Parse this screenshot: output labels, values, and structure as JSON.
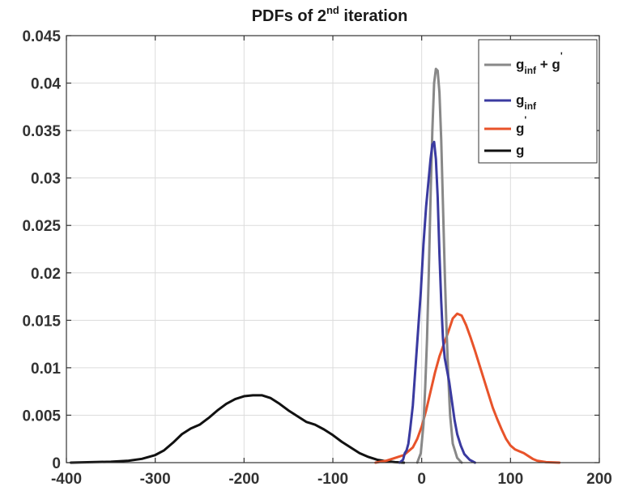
{
  "chart_data": {
    "type": "line",
    "title": {
      "prefix": "PDFs of 2",
      "superscript": "nd",
      "suffix": " iteration"
    },
    "xlabel": "",
    "ylabel": "",
    "xlim": [
      -400,
      200
    ],
    "ylim": [
      0,
      0.045
    ],
    "xticks": [
      -400,
      -300,
      -200,
      -100,
      0,
      100,
      200
    ],
    "xtick_labels": [
      "-400",
      "-300",
      "-200",
      "-100",
      "0",
      "100",
      "200"
    ],
    "yticks": [
      0,
      0.005,
      0.01,
      0.015,
      0.02,
      0.025,
      0.03,
      0.035,
      0.04,
      0.045
    ],
    "ytick_labels": [
      "0",
      "0.005",
      "0.01",
      "0.015",
      "0.02",
      "0.025",
      "0.03",
      "0.035",
      "0.04",
      "0.045"
    ],
    "grid": true,
    "legend_position": "top-right",
    "series": [
      {
        "name": "g_inf + g'",
        "legend": {
          "base": "g",
          "sub": "inf",
          "middle": " + g",
          "sup": "'"
        },
        "color": "#888888",
        "points": [
          [
            -5,
            0
          ],
          [
            -1,
            0.001
          ],
          [
            2,
            0.004
          ],
          [
            4,
            0.008
          ],
          [
            6,
            0.013
          ],
          [
            8,
            0.02
          ],
          [
            10,
            0.028
          ],
          [
            12,
            0.035
          ],
          [
            14,
            0.04
          ],
          [
            16,
            0.0415
          ],
          [
            18,
            0.0413
          ],
          [
            20,
            0.039
          ],
          [
            22,
            0.034
          ],
          [
            24,
            0.027
          ],
          [
            26,
            0.02
          ],
          [
            28,
            0.014
          ],
          [
            30,
            0.009
          ],
          [
            32,
            0.005
          ],
          [
            35,
            0.002
          ],
          [
            40,
            0.0005
          ],
          [
            45,
            0
          ]
        ]
      },
      {
        "name": "g_inf",
        "legend": {
          "base": "g",
          "sub": "inf",
          "middle": "",
          "sup": ""
        },
        "color": "#3a3aa0",
        "points": [
          [
            -25,
            0
          ],
          [
            -21,
            0.0003
          ],
          [
            -19,
            0.001
          ],
          [
            -17,
            0.0013
          ],
          [
            -15,
            0.002
          ],
          [
            -13,
            0.0035
          ],
          [
            -10,
            0.006
          ],
          [
            -7,
            0.01
          ],
          [
            -4,
            0.014
          ],
          [
            -1,
            0.018
          ],
          [
            2,
            0.023
          ],
          [
            5,
            0.027
          ],
          [
            8,
            0.03
          ],
          [
            10,
            0.032
          ],
          [
            12,
            0.0335
          ],
          [
            14,
            0.0338
          ],
          [
            16,
            0.032
          ],
          [
            18,
            0.028
          ],
          [
            20,
            0.022
          ],
          [
            22,
            0.017
          ],
          [
            24,
            0.013
          ],
          [
            26,
            0.011
          ],
          [
            28,
            0.01
          ],
          [
            31,
            0.0085
          ],
          [
            34,
            0.0065
          ],
          [
            37,
            0.0045
          ],
          [
            40,
            0.003
          ],
          [
            44,
            0.0018
          ],
          [
            48,
            0.0009
          ],
          [
            54,
            0.0003
          ],
          [
            60,
            0
          ]
        ]
      },
      {
        "name": "g'",
        "legend": {
          "base": "g",
          "sub": "",
          "middle": "",
          "sup": "'"
        },
        "color": "#e8532a",
        "points": [
          [
            -52,
            0
          ],
          [
            -40,
            0.0002
          ],
          [
            -30,
            0.0005
          ],
          [
            -20,
            0.0008
          ],
          [
            -10,
            0.0016
          ],
          [
            -5,
            0.0025
          ],
          [
            0,
            0.0038
          ],
          [
            5,
            0.0055
          ],
          [
            10,
            0.0075
          ],
          [
            15,
            0.0095
          ],
          [
            20,
            0.0112
          ],
          [
            25,
            0.0125
          ],
          [
            30,
            0.0138
          ],
          [
            35,
            0.0152
          ],
          [
            40,
            0.0157
          ],
          [
            45,
            0.0155
          ],
          [
            50,
            0.0145
          ],
          [
            55,
            0.0132
          ],
          [
            60,
            0.0118
          ],
          [
            65,
            0.0103
          ],
          [
            70,
            0.0088
          ],
          [
            75,
            0.0073
          ],
          [
            80,
            0.0058
          ],
          [
            85,
            0.0046
          ],
          [
            90,
            0.0035
          ],
          [
            95,
            0.0025
          ],
          [
            100,
            0.0018
          ],
          [
            105,
            0.0014
          ],
          [
            110,
            0.0012
          ],
          [
            115,
            0.001
          ],
          [
            120,
            0.0007
          ],
          [
            125,
            0.0004
          ],
          [
            130,
            0.0002
          ],
          [
            140,
            5e-05
          ],
          [
            155,
            0
          ]
        ]
      },
      {
        "name": "g",
        "legend": {
          "base": "g",
          "sub": "",
          "middle": "",
          "sup": ""
        },
        "color": "#111111",
        "points": [
          [
            -395,
            0
          ],
          [
            -350,
            0.0001
          ],
          [
            -330,
            0.0002
          ],
          [
            -315,
            0.0004
          ],
          [
            -300,
            0.0008
          ],
          [
            -290,
            0.0013
          ],
          [
            -280,
            0.0021
          ],
          [
            -270,
            0.003
          ],
          [
            -260,
            0.0036
          ],
          [
            -250,
            0.004
          ],
          [
            -240,
            0.0047
          ],
          [
            -230,
            0.0055
          ],
          [
            -220,
            0.0062
          ],
          [
            -210,
            0.0067
          ],
          [
            -200,
            0.007
          ],
          [
            -190,
            0.0071
          ],
          [
            -180,
            0.0071
          ],
          [
            -170,
            0.0068
          ],
          [
            -160,
            0.0062
          ],
          [
            -150,
            0.0055
          ],
          [
            -140,
            0.0049
          ],
          [
            -130,
            0.0043
          ],
          [
            -120,
            0.004
          ],
          [
            -110,
            0.0035
          ],
          [
            -100,
            0.0029
          ],
          [
            -90,
            0.0022
          ],
          [
            -80,
            0.0016
          ],
          [
            -70,
            0.001
          ],
          [
            -60,
            0.0006
          ],
          [
            -50,
            0.0003
          ],
          [
            -40,
            0.00015
          ],
          [
            -30,
            5e-05
          ],
          [
            -20,
            0
          ]
        ]
      }
    ]
  }
}
